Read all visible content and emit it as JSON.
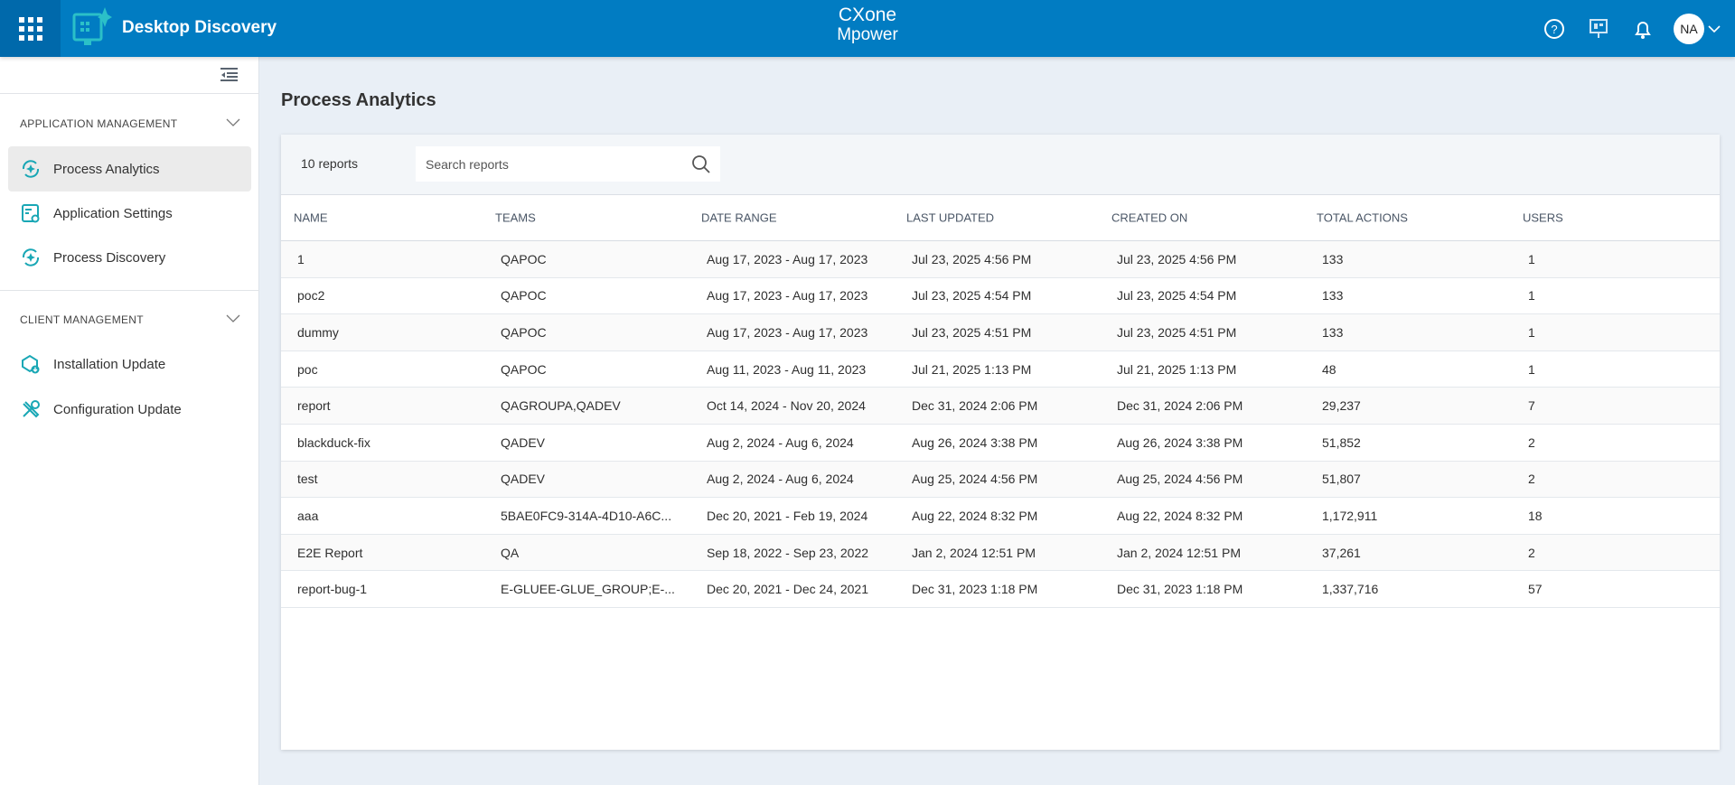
{
  "header": {
    "app_title": "Desktop Discovery",
    "brand_top": "CXone",
    "brand_bottom": "Mpower",
    "avatar": "NA",
    "accent": "#017cc2"
  },
  "sidebar": {
    "sections": [
      {
        "title": "APPLICATION MANAGEMENT",
        "items": [
          {
            "label": "Process Analytics",
            "icon": "process-analytics-icon",
            "active": true
          },
          {
            "label": "Application Settings",
            "icon": "app-settings-icon"
          },
          {
            "label": "Process Discovery",
            "icon": "process-discovery-icon"
          }
        ]
      },
      {
        "title": "CLIENT MANAGEMENT",
        "items": [
          {
            "label": "Installation Update",
            "icon": "installation-update-icon"
          },
          {
            "label": "Configuration Update",
            "icon": "configuration-update-icon"
          }
        ]
      }
    ]
  },
  "main": {
    "title": "Process Analytics",
    "count": "10 reports",
    "search_placeholder": "Search reports",
    "columns": [
      "NAME",
      "TEAMS",
      "DATE RANGE",
      "LAST UPDATED",
      "CREATED ON",
      "TOTAL ACTIONS",
      "USERS"
    ],
    "rows": [
      [
        "1",
        "QAPOC",
        "Aug 17, 2023 - Aug 17, 2023",
        "Jul 23, 2025 4:56 PM",
        "Jul 23, 2025 4:56 PM",
        "133",
        "1"
      ],
      [
        "poc2",
        "QAPOC",
        "Aug 17, 2023 - Aug 17, 2023",
        "Jul 23, 2025 4:54 PM",
        "Jul 23, 2025 4:54 PM",
        "133",
        "1"
      ],
      [
        "dummy",
        "QAPOC",
        "Aug 17, 2023 - Aug 17, 2023",
        "Jul 23, 2025 4:51 PM",
        "Jul 23, 2025 4:51 PM",
        "133",
        "1"
      ],
      [
        "poc",
        "QAPOC",
        "Aug 11, 2023 - Aug 11, 2023",
        "Jul 21, 2025 1:13 PM",
        "Jul 21, 2025 1:13 PM",
        "48",
        "1"
      ],
      [
        "report",
        "QAGROUPA,QADEV",
        "Oct 14, 2024 - Nov 20, 2024",
        "Dec 31, 2024 2:06 PM",
        "Dec 31, 2024 2:06 PM",
        "29,237",
        "7"
      ],
      [
        "blackduck-fix",
        "QADEV",
        "Aug 2, 2024 - Aug 6, 2024",
        "Aug 26, 2024 3:38 PM",
        "Aug 26, 2024 3:38 PM",
        "51,852",
        "2"
      ],
      [
        "test",
        "QADEV",
        "Aug 2, 2024 - Aug 6, 2024",
        "Aug 25, 2024 4:56 PM",
        "Aug 25, 2024 4:56 PM",
        "51,807",
        "2"
      ],
      [
        "aaa",
        "5BAE0FC9-314A-4D10-A6C...",
        "Dec 20, 2021 - Feb 19, 2024",
        "Aug 22, 2024 8:32 PM",
        "Aug 22, 2024 8:32 PM",
        "1,172,911",
        "18"
      ],
      [
        "E2E Report",
        "QA",
        "Sep 18, 2022 - Sep 23, 2022",
        "Jan 2, 2024 12:51 PM",
        "Jan 2, 2024 12:51 PM",
        "37,261",
        "2"
      ],
      [
        "report-bug-1",
        "E-GLUEE-GLUE_GROUP;E-...",
        "Dec 20, 2021 - Dec 24, 2021",
        "Dec 31, 2023 1:18 PM",
        "Dec 31, 2023 1:18 PM",
        "1,337,716",
        "57"
      ]
    ]
  }
}
